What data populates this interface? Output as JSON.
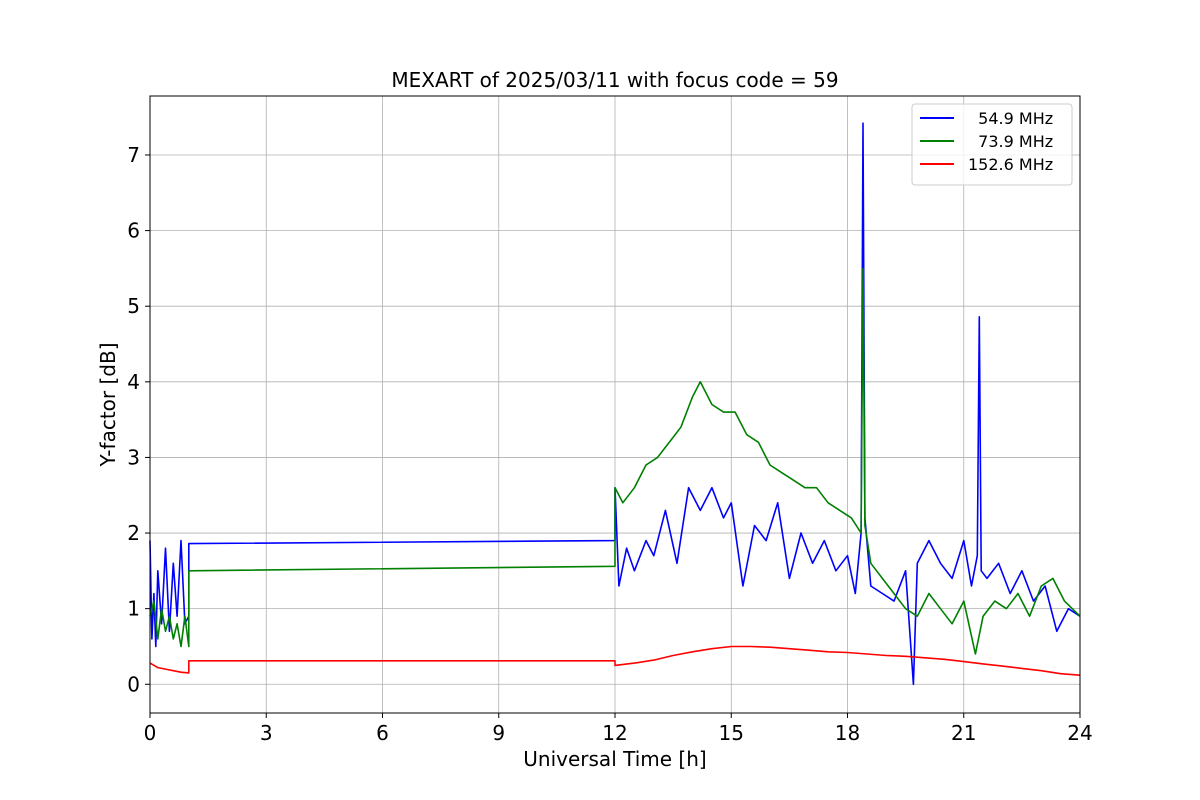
{
  "chart_data": {
    "type": "line",
    "title": "MEXART of 2025/03/11 with focus code = 59",
    "xlabel": "Universal Time [h]",
    "ylabel": "Y-factor [dB]",
    "xlim": [
      0,
      24
    ],
    "ylim": [
      -0.38,
      7.78
    ],
    "xticks": [
      0,
      3,
      6,
      9,
      12,
      15,
      18,
      21,
      24
    ],
    "yticks": [
      0,
      1,
      2,
      3,
      4,
      5,
      6,
      7
    ],
    "grid": true,
    "legend_position": "top-right",
    "series": [
      {
        "name": "  54.9 MHz",
        "color": "#0000ff",
        "x": [
          0,
          0.05,
          0.1,
          0.15,
          0.2,
          0.3,
          0.4,
          0.5,
          0.6,
          0.7,
          0.8,
          0.9,
          1.0,
          1.0,
          12.0,
          12.0,
          12.1,
          12.3,
          12.5,
          12.8,
          13.0,
          13.3,
          13.6,
          13.9,
          14.2,
          14.5,
          14.8,
          15.0,
          15.3,
          15.6,
          15.9,
          16.2,
          16.5,
          16.8,
          17.1,
          17.4,
          17.7,
          18.0,
          18.2,
          18.35,
          18.4,
          18.45,
          18.6,
          18.9,
          19.2,
          19.5,
          19.7,
          19.8,
          20.1,
          20.4,
          20.7,
          21.0,
          21.2,
          21.35,
          21.4,
          21.45,
          21.6,
          21.9,
          22.2,
          22.5,
          22.8,
          23.1,
          23.4,
          23.7,
          24.0
        ],
        "y": [
          1.9,
          0.6,
          1.2,
          0.5,
          1.5,
          0.8,
          1.8,
          0.7,
          1.6,
          0.9,
          1.9,
          0.8,
          0.9,
          1.86,
          1.9,
          2.6,
          1.3,
          1.8,
          1.5,
          1.9,
          1.7,
          2.3,
          1.6,
          2.6,
          2.3,
          2.6,
          2.2,
          2.4,
          1.3,
          2.1,
          1.9,
          2.4,
          1.4,
          2.0,
          1.6,
          1.9,
          1.5,
          1.7,
          1.2,
          2.0,
          7.42,
          2.2,
          1.3,
          1.2,
          1.1,
          1.5,
          0.0,
          1.6,
          1.9,
          1.6,
          1.4,
          1.9,
          1.3,
          1.7,
          4.86,
          1.5,
          1.4,
          1.6,
          1.2,
          1.5,
          1.1,
          1.3,
          0.7,
          1.0,
          0.9
        ]
      },
      {
        "name": "  73.9 MHz",
        "color": "#008000",
        "x": [
          0,
          0.1,
          0.2,
          0.3,
          0.4,
          0.5,
          0.6,
          0.7,
          0.8,
          0.9,
          1.0,
          1.0,
          12.0,
          12.0,
          12.2,
          12.5,
          12.8,
          13.1,
          13.4,
          13.7,
          14.0,
          14.2,
          14.5,
          14.8,
          15.1,
          15.4,
          15.7,
          16.0,
          16.3,
          16.6,
          16.9,
          17.2,
          17.5,
          17.8,
          18.1,
          18.35,
          18.4,
          18.45,
          18.6,
          18.9,
          19.2,
          19.5,
          19.8,
          20.1,
          20.4,
          20.7,
          21.0,
          21.3,
          21.5,
          21.8,
          22.1,
          22.4,
          22.7,
          23.0,
          23.3,
          23.6,
          24.0
        ],
        "y": [
          0.9,
          1.1,
          0.6,
          1.0,
          0.7,
          0.9,
          0.6,
          0.8,
          0.5,
          0.9,
          0.5,
          1.5,
          1.56,
          2.6,
          2.4,
          2.6,
          2.9,
          3.0,
          3.2,
          3.4,
          3.8,
          4.0,
          3.7,
          3.6,
          3.6,
          3.3,
          3.2,
          2.9,
          2.8,
          2.7,
          2.6,
          2.6,
          2.4,
          2.3,
          2.2,
          2.0,
          5.5,
          2.1,
          1.6,
          1.4,
          1.2,
          1.0,
          0.9,
          1.2,
          1.0,
          0.8,
          1.1,
          0.4,
          0.9,
          1.1,
          1.0,
          1.2,
          0.9,
          1.3,
          1.4,
          1.1,
          0.9
        ]
      },
      {
        "name": "152.6 MHz",
        "color": "#ff0000",
        "x": [
          0,
          0.2,
          0.4,
          0.6,
          0.8,
          1.0,
          1.0,
          12.0,
          12.0,
          12.5,
          13.0,
          13.5,
          14.0,
          14.5,
          15.0,
          15.5,
          16.0,
          16.5,
          17.0,
          17.5,
          18.0,
          18.5,
          19.0,
          19.5,
          20.0,
          20.5,
          21.0,
          21.5,
          22.0,
          22.5,
          23.0,
          23.5,
          24.0
        ],
        "y": [
          0.28,
          0.22,
          0.2,
          0.18,
          0.16,
          0.15,
          0.31,
          0.31,
          0.25,
          0.28,
          0.32,
          0.38,
          0.43,
          0.47,
          0.5,
          0.5,
          0.49,
          0.47,
          0.45,
          0.43,
          0.42,
          0.4,
          0.38,
          0.37,
          0.35,
          0.33,
          0.3,
          0.27,
          0.24,
          0.21,
          0.18,
          0.14,
          0.12
        ]
      }
    ]
  }
}
